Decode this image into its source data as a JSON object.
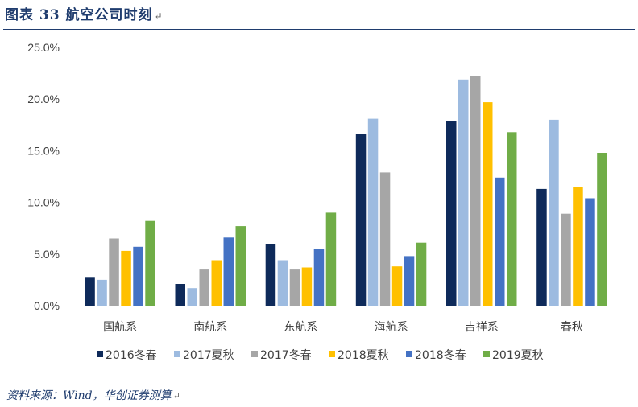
{
  "figure": {
    "title": "图表 33 航空公司时刻",
    "title_mark": "↵",
    "source": "资料来源：Wind，华创证券测算",
    "source_mark": "↵"
  },
  "colors": {
    "title": "#1f3c6e",
    "axis": "#d9d9d9",
    "text": "#404040"
  },
  "chart_data": {
    "type": "bar",
    "categories": [
      "国航系",
      "南航系",
      "东航系",
      "海航系",
      "吉祥系",
      "春秋"
    ],
    "ylim": [
      0,
      25
    ],
    "yticks": [
      0,
      5,
      10,
      15,
      20,
      25
    ],
    "ytick_labels": [
      "0.0%",
      "5.0%",
      "10.0%",
      "15.0%",
      "20.0%",
      "25.0%"
    ],
    "y_unit": "%",
    "grid": false,
    "legend_position": "bottom",
    "series": [
      {
        "name": "2016冬春",
        "color": "#0e2a5a",
        "values": [
          2.7,
          2.1,
          6.0,
          16.6,
          17.9,
          11.3
        ]
      },
      {
        "name": "2017夏秋",
        "color": "#9dbbe0",
        "values": [
          2.5,
          1.7,
          4.4,
          18.1,
          21.9,
          18.0
        ]
      },
      {
        "name": "2017冬春",
        "color": "#a6a6a6",
        "values": [
          6.5,
          3.5,
          3.5,
          12.9,
          22.2,
          8.9
        ]
      },
      {
        "name": "2018夏秋",
        "color": "#ffc000",
        "values": [
          5.3,
          4.4,
          3.7,
          3.8,
          19.7,
          11.5
        ]
      },
      {
        "name": "2018冬春",
        "color": "#4472c4",
        "values": [
          5.7,
          6.6,
          5.5,
          4.8,
          12.4,
          10.4
        ]
      },
      {
        "name": "2019夏秋",
        "color": "#70ad47",
        "values": [
          8.2,
          7.7,
          9.0,
          6.1,
          16.8,
          14.8
        ]
      }
    ]
  }
}
